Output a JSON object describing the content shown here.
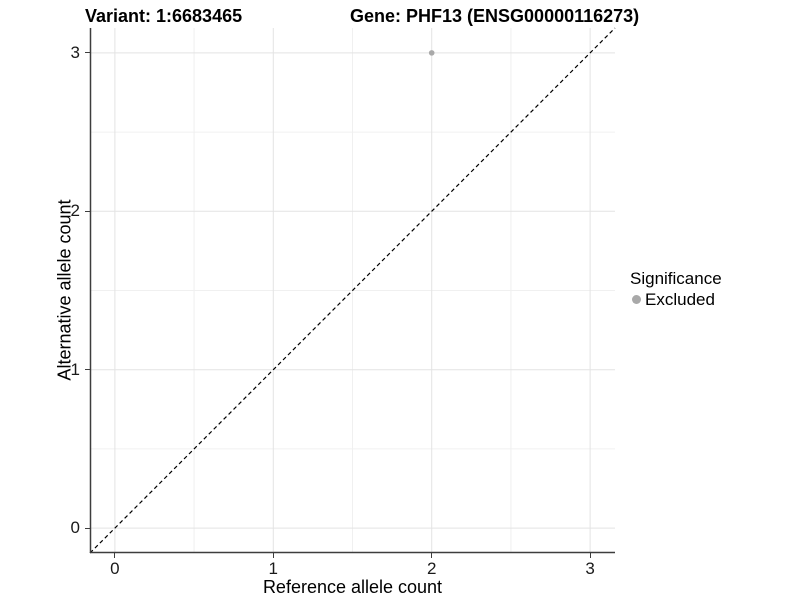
{
  "figure": {
    "title_left": "Variant: 1:6683465",
    "title_right": "Gene: PHF13 (ENSG00000116273)"
  },
  "chart_data": {
    "type": "scatter",
    "title": "Variant: 1:6683465  Gene: PHF13 (ENSG00000116273)",
    "xlabel": "Reference allele count",
    "ylabel": "Alternative allele count",
    "xlim": [
      -0.157,
      3.157
    ],
    "ylim": [
      -0.157,
      3.157
    ],
    "x_ticks": [
      0,
      1,
      2,
      3
    ],
    "y_ticks": [
      0,
      1,
      2,
      3
    ],
    "x_minor_ticks": [
      0.5,
      1.5,
      2.5
    ],
    "y_minor_ticks": [
      0.5,
      1.5,
      2.5
    ],
    "grid": true,
    "points": [
      {
        "x": 2,
        "y": 3,
        "series": "Excluded"
      }
    ],
    "series": [
      {
        "name": "Excluded",
        "color": "#a9a9a9"
      }
    ],
    "abline": {
      "slope": 1,
      "intercept": 0,
      "style": "dashed",
      "color": "#000000"
    },
    "legend": {
      "title": "Significance",
      "position": "right",
      "entries": [
        {
          "label": "Excluded",
          "color": "#a9a9a9"
        }
      ]
    }
  },
  "colors": {
    "background": "#ffffff",
    "grid_major": "#e3e3e3",
    "grid_minor": "#f0f0f0",
    "axis_line": "#3d3d3d",
    "tick_text": "#1a1a1a",
    "point": "#a9a9a9"
  }
}
